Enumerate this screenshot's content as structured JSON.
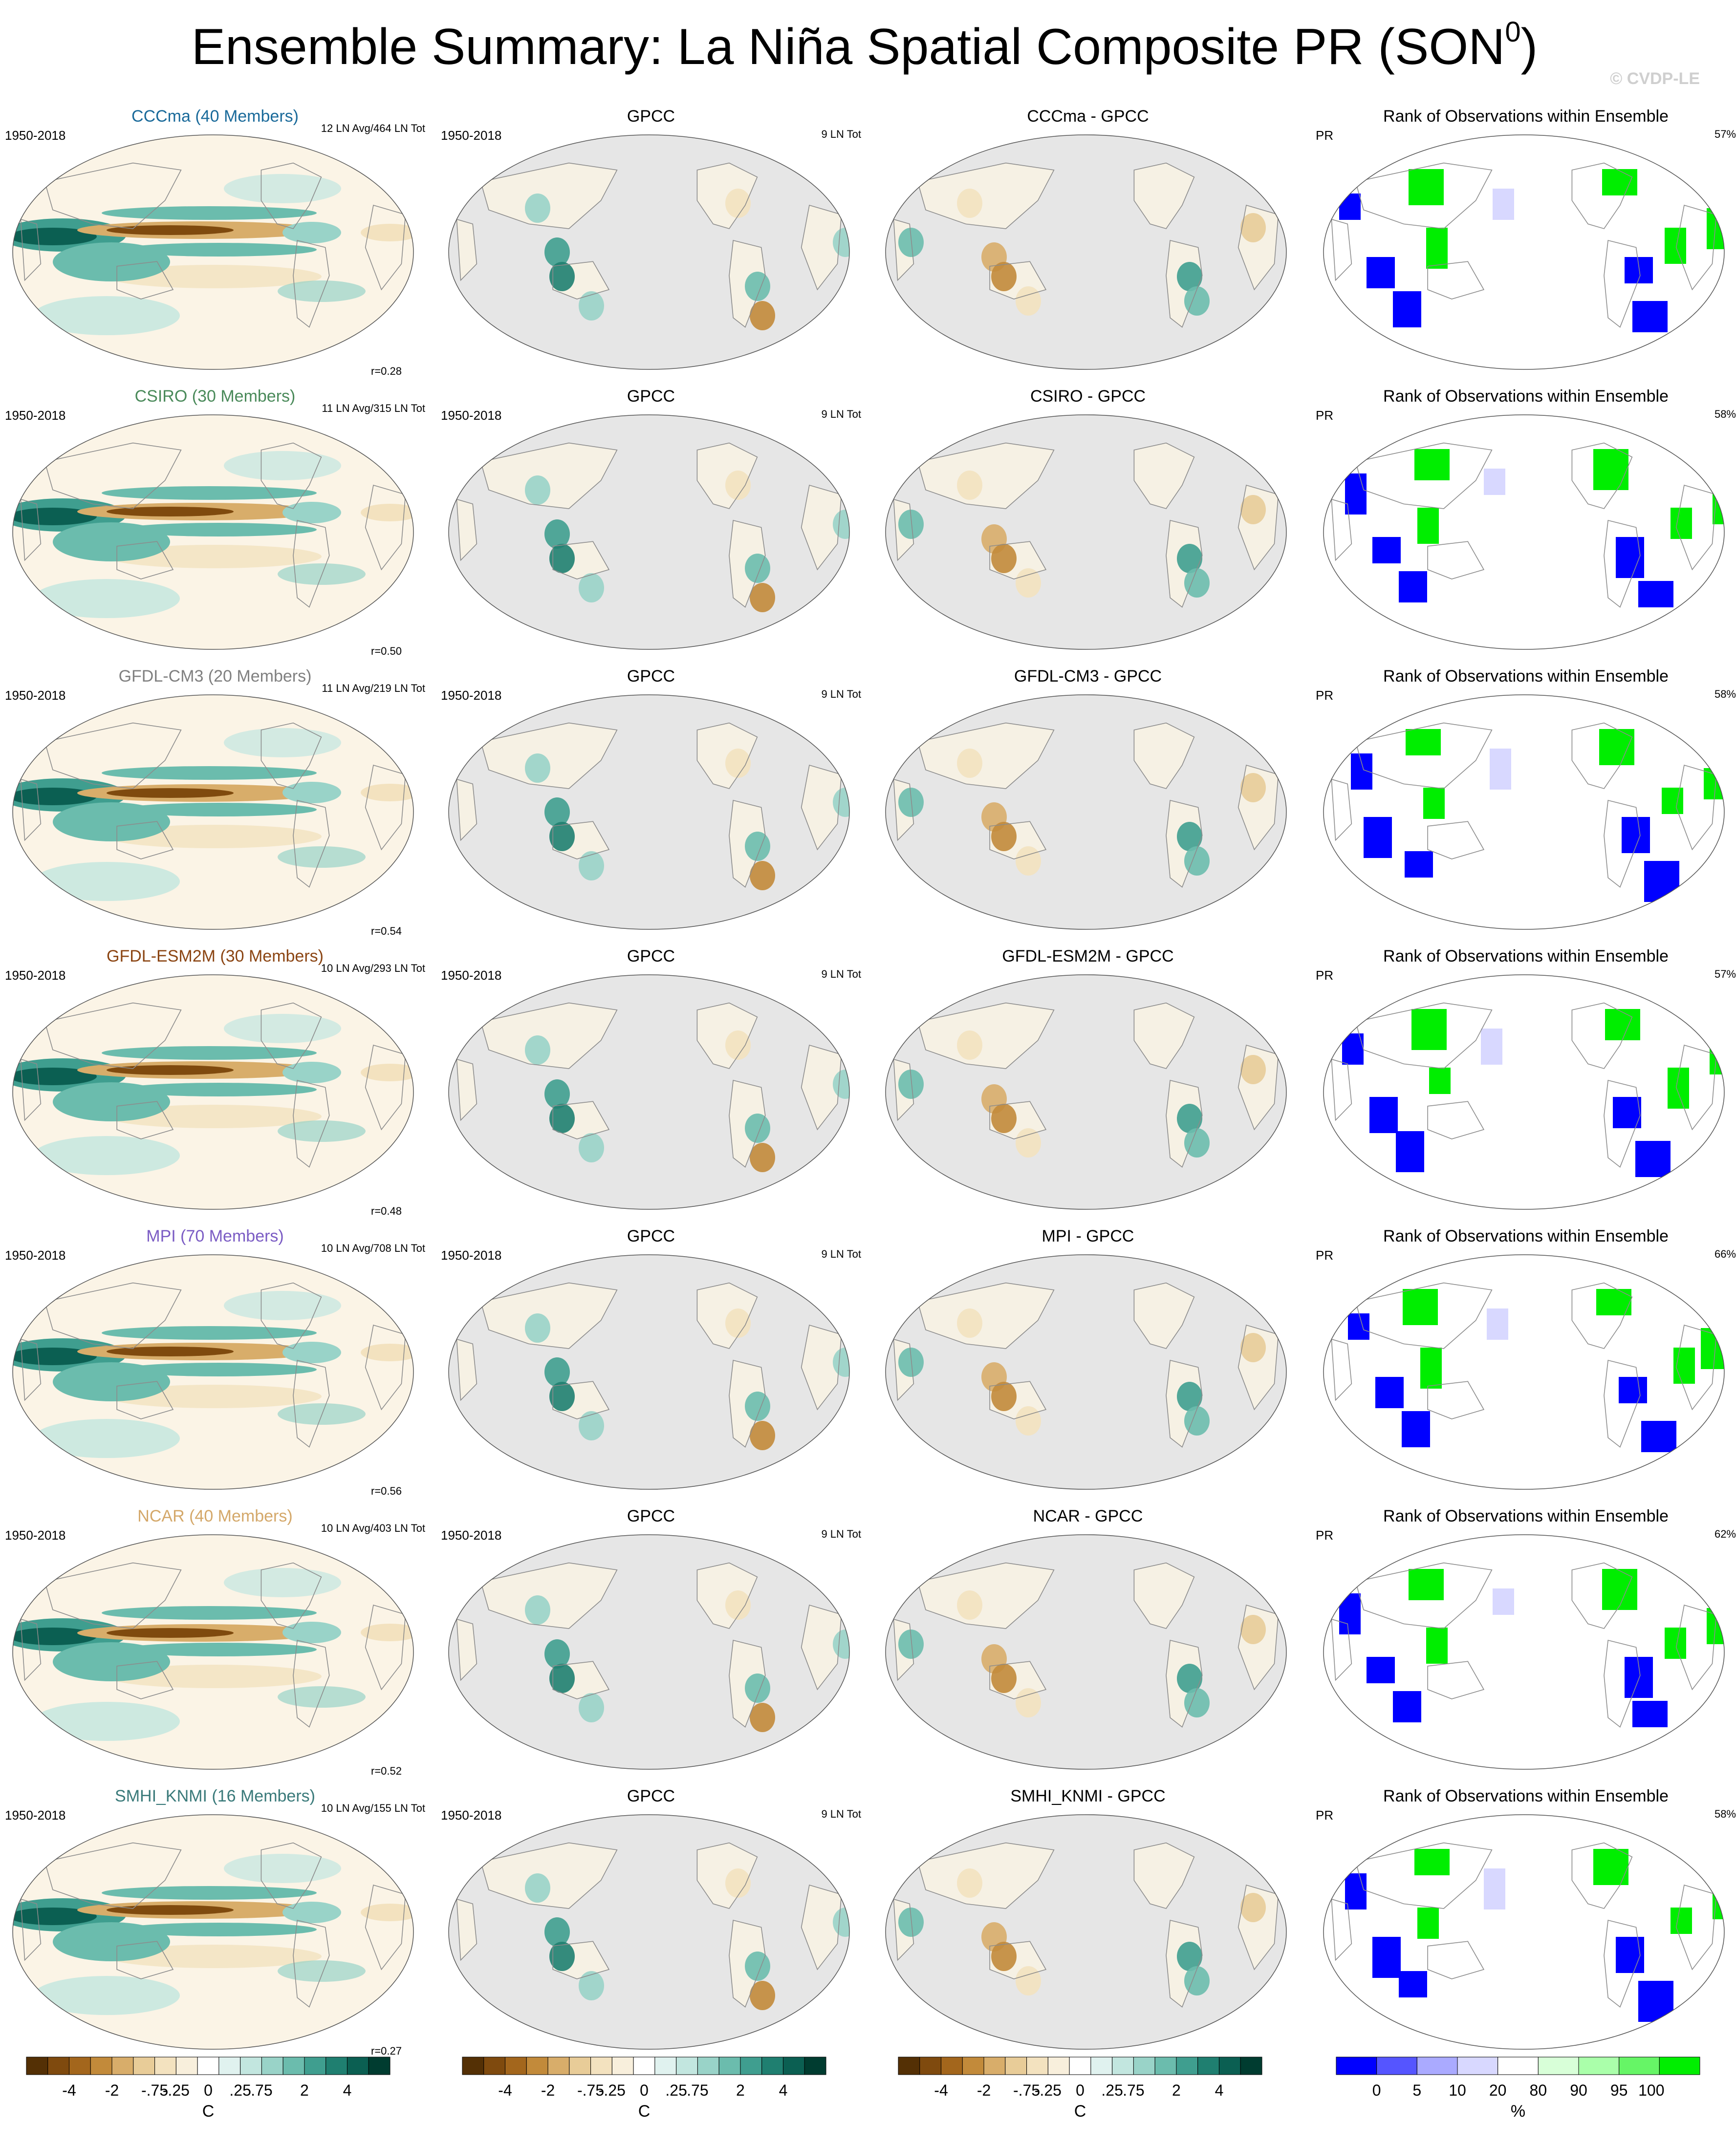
{
  "title_main": "Ensemble Summary: La Niña Spatial Composite PR (SON",
  "title_sup": "0",
  "title_end": ")",
  "copyright": "© CVDP-LE",
  "col_obs_title": "GPCC",
  "col_rank_title": "Rank of Observations within Ensemble",
  "period": "1950-2018",
  "obs_count": "9 LN Tot",
  "rank_var": "PR",
  "colors": {
    "land_outline": "#8c8c8c",
    "obs_background": "#e6e6e6",
    "brown_dark": "#543005",
    "teal_dark": "#003c30",
    "rank_blue": "#0000ff",
    "rank_green": "#00ee00"
  },
  "rows": [
    {
      "model": "CCCma (40 Members)",
      "model_color": "#1a6a9a",
      "diff_title": "CCCma - GPCC",
      "counts": "12 LN Avg/464 LN Tot",
      "r": "r=0.28",
      "rank_pct": "57%"
    },
    {
      "model": "CSIRO (30 Members)",
      "model_color": "#4a8a5a",
      "diff_title": "CSIRO - GPCC",
      "counts": "11 LN Avg/315 LN Tot",
      "r": "r=0.50",
      "rank_pct": "58%"
    },
    {
      "model": "GFDL-CM3 (20 Members)",
      "model_color": "#808080",
      "diff_title": "GFDL-CM3 - GPCC",
      "counts": "11 LN Avg/219 LN Tot",
      "r": "r=0.54",
      "rank_pct": "58%"
    },
    {
      "model": "GFDL-ESM2M (30 Members)",
      "model_color": "#8b4513",
      "diff_title": "GFDL-ESM2M - GPCC",
      "counts": "10 LN Avg/293 LN Tot",
      "r": "r=0.48",
      "rank_pct": "57%"
    },
    {
      "model": "MPI (70 Members)",
      "model_color": "#7b5cc4",
      "diff_title": "MPI - GPCC",
      "counts": "10 LN Avg/708 LN Tot",
      "r": "r=0.56",
      "rank_pct": "66%"
    },
    {
      "model": "NCAR (40 Members)",
      "model_color": "#d4a86a",
      "diff_title": "NCAR - GPCC",
      "counts": "10 LN Avg/403 LN Tot",
      "r": "r=0.52",
      "rank_pct": "62%"
    },
    {
      "model": "SMHI_KNMI (16 Members)",
      "model_color": "#3a7a7a",
      "diff_title": "SMHI_KNMI - GPCC",
      "counts": "10 LN Avg/155 LN Tot",
      "r": "r=0.27",
      "rank_pct": "58%"
    }
  ],
  "chart_data": {
    "type": "heatmap",
    "title": "Ensemble Summary: La Niña Spatial Composite PR (SON0)",
    "grid": "7 rows × 4 panels of global map composites",
    "colorbar_composite": {
      "labels": [
        "-4",
        "-2",
        "-.75",
        "-.25",
        "0",
        ".25",
        ".75",
        "2",
        "4"
      ],
      "unit": "C",
      "colors": [
        "#543005",
        "#7f4a0e",
        "#a3661c",
        "#c28a3a",
        "#d8ad6a",
        "#e8cc98",
        "#f3e2bf",
        "#f8efdc",
        "#ffffff",
        "#e0f2ef",
        "#c2e6df",
        "#99d3c8",
        "#6bbcad",
        "#3f9e8f",
        "#1f7f70",
        "#0b5f52",
        "#003c30"
      ]
    },
    "colorbar_rank": {
      "labels": [
        "0",
        "5",
        "10",
        "20",
        "80",
        "90",
        "95",
        "100"
      ],
      "unit": "%",
      "colors": [
        "#0000ff",
        "#5555ff",
        "#aaaaff",
        "#d8d8ff",
        "#ffffff",
        "#d8ffd8",
        "#aaffaa",
        "#66f566",
        "#00ee00"
      ]
    },
    "spatial_correlation": [
      0.28,
      0.5,
      0.54,
      0.48,
      0.56,
      0.52,
      0.27
    ],
    "rank_percent": [
      57,
      58,
      58,
      57,
      66,
      62,
      58
    ]
  }
}
